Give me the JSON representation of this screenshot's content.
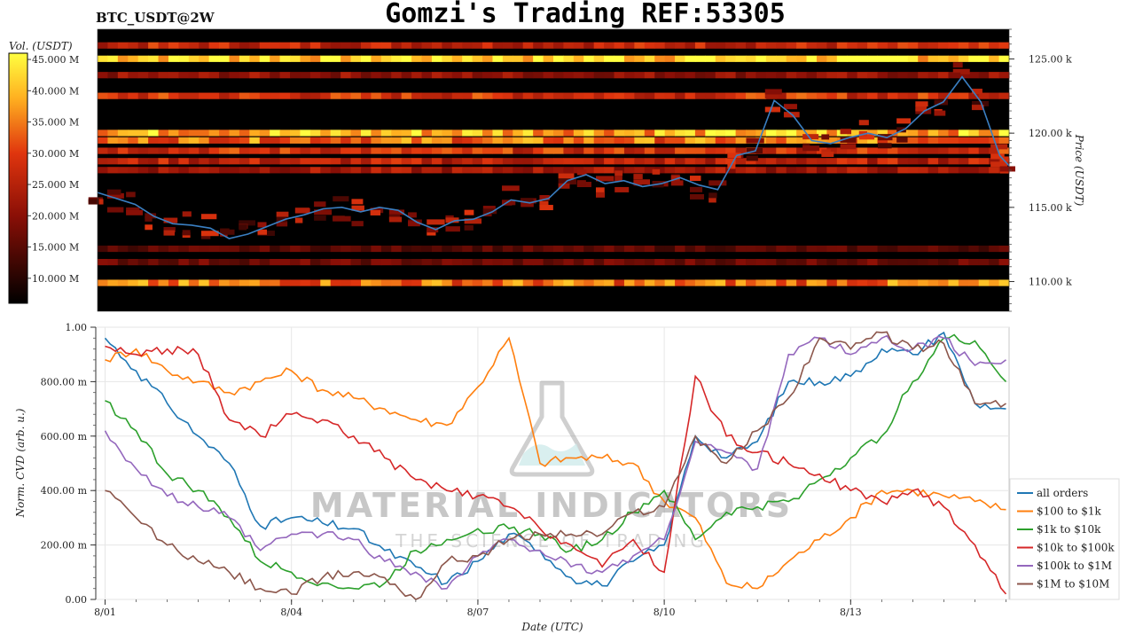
{
  "header": {
    "symbol": "BTC_USDT@2W",
    "title": "Gomzi's Trading REF:53305"
  },
  "watermark": {
    "brand": "MATERIAL INDICATORS",
    "tagline": "THE SCIENCE OF TRADING"
  },
  "colors": {
    "price_line": "#3a7fc2",
    "heatmap_low": "#000000",
    "heatmap_mid": "#b71c0c",
    "heatmap_high": "#ffff30",
    "all_orders": "#1f77b4",
    "usd_100_1k": "#ff7f0e",
    "usd_1k_10k": "#2ca02c",
    "usd_10k_100k": "#d62728",
    "usd_100k_1m": "#9467bd",
    "usd_1m_10m": "#8c564b"
  },
  "chart_data": [
    {
      "type": "heatmap",
      "name_label": "BTC_USDT@2W",
      "colorbar": {
        "label": "Vol. (USDT)",
        "ticks": [
          "10.000 M",
          "15.000 M",
          "20.000 M",
          "25.000 M",
          "30.000 M",
          "35.000 M",
          "40.000 M",
          "45.000 M"
        ],
        "tick_values": [
          10,
          15,
          20,
          25,
          30,
          35,
          40,
          45
        ],
        "range": [
          6,
          46
        ]
      },
      "ylabel": "Price (USDT)",
      "ylim": [
        108000,
        127000
      ],
      "y_ticks": [
        {
          "value": 110000,
          "label": "110.00 k"
        },
        {
          "value": 115000,
          "label": "115.00 k"
        },
        {
          "value": 120000,
          "label": "120.00 k"
        },
        {
          "value": 125000,
          "label": "125.00 k"
        }
      ],
      "x_range_days": [
        0,
        14.55
      ],
      "price_series": {
        "x": [
          0,
          0.3,
          0.6,
          0.9,
          1.2,
          1.5,
          1.8,
          2.1,
          2.4,
          2.7,
          3.0,
          3.3,
          3.6,
          3.9,
          4.2,
          4.5,
          4.8,
          5.1,
          5.4,
          5.7,
          6.0,
          6.3,
          6.6,
          6.9,
          7.2,
          7.5,
          7.8,
          8.1,
          8.4,
          8.7,
          9.0,
          9.3,
          9.6,
          9.9,
          10.2,
          10.5,
          10.8,
          11.1,
          11.4,
          11.7,
          12.0,
          12.3,
          12.6,
          12.9,
          13.2,
          13.5,
          13.8,
          14.1,
          14.4,
          14.55
        ],
        "values": [
          116000,
          115600,
          115200,
          114400,
          113900,
          113800,
          113600,
          112900,
          113200,
          113700,
          114200,
          114500,
          114900,
          115000,
          114700,
          115000,
          114800,
          114000,
          113500,
          114100,
          114200,
          114700,
          115500,
          115300,
          115600,
          116800,
          117200,
          116600,
          116800,
          116400,
          116600,
          117000,
          116500,
          116200,
          118500,
          118800,
          122200,
          121200,
          119500,
          119300,
          119700,
          120000,
          119700,
          120300,
          121500,
          122100,
          123800,
          122100,
          118500,
          117800
        ]
      },
      "volume_bands": [
        {
          "price": 125100,
          "volume": 46
        },
        {
          "price": 126000,
          "volume": 28
        },
        {
          "price": 124000,
          "volume": 22
        },
        {
          "price": 122600,
          "volume": 30
        },
        {
          "price": 120100,
          "volume": 42
        },
        {
          "price": 119600,
          "volume": 36
        },
        {
          "price": 118900,
          "volume": 30
        },
        {
          "price": 118200,
          "volume": 27
        },
        {
          "price": 117600,
          "volume": 24
        },
        {
          "price": 112300,
          "volume": 16
        },
        {
          "price": 111400,
          "volume": 18
        },
        {
          "price": 110000,
          "volume": 36
        }
      ]
    },
    {
      "type": "line",
      "xlabel": "Date (UTC)",
      "ylabel": "Norm. CVD (arb. u.)",
      "ylim": [
        0,
        1
      ],
      "xlim_days": [
        -0.15,
        14.55
      ],
      "y_ticks": [
        {
          "value": 0,
          "label": "0.00"
        },
        {
          "value": 0.2,
          "label": "200.00 m"
        },
        {
          "value": 0.4,
          "label": "400.00 m"
        },
        {
          "value": 0.6,
          "label": "600.00 m"
        },
        {
          "value": 0.8,
          "label": "800.00 m"
        },
        {
          "value": 1.0,
          "label": "1.00"
        }
      ],
      "x_ticks": [
        {
          "value": 0,
          "label": "8/01"
        },
        {
          "value": 3,
          "label": "8/04"
        },
        {
          "value": 6,
          "label": "8/07"
        },
        {
          "value": 9,
          "label": "8/10"
        },
        {
          "value": 12,
          "label": "8/13"
        }
      ],
      "x": [
        0,
        0.5,
        1,
        1.5,
        2,
        2.5,
        3,
        3.5,
        4,
        4.5,
        5,
        5.5,
        6,
        6.5,
        7,
        7.5,
        8,
        8.5,
        9,
        9.5,
        10,
        10.5,
        11,
        11.5,
        12,
        12.5,
        13,
        13.5,
        14,
        14.5
      ],
      "series": [
        {
          "name": "all orders",
          "values": [
            0.96,
            0.84,
            0.72,
            0.6,
            0.5,
            0.27,
            0.3,
            0.28,
            0.26,
            0.18,
            0.12,
            0.06,
            0.14,
            0.24,
            0.18,
            0.08,
            0.05,
            0.14,
            0.2,
            0.6,
            0.52,
            0.58,
            0.8,
            0.8,
            0.82,
            0.92,
            0.9,
            0.98,
            0.72,
            0.7
          ]
        },
        {
          "name": "$100 to $1k",
          "values": [
            0.88,
            0.92,
            0.84,
            0.8,
            0.76,
            0.8,
            0.84,
            0.77,
            0.74,
            0.7,
            0.66,
            0.64,
            0.78,
            0.96,
            0.5,
            0.52,
            0.52,
            0.5,
            0.36,
            0.3,
            0.06,
            0.04,
            0.14,
            0.22,
            0.3,
            0.4,
            0.4,
            0.38,
            0.36,
            0.33
          ]
        },
        {
          "name": "$1k to $10k",
          "values": [
            0.73,
            0.62,
            0.46,
            0.4,
            0.3,
            0.14,
            0.1,
            0.06,
            0.04,
            0.06,
            0.18,
            0.22,
            0.26,
            0.26,
            0.24,
            0.18,
            0.22,
            0.32,
            0.4,
            0.22,
            0.32,
            0.34,
            0.36,
            0.44,
            0.52,
            0.6,
            0.8,
            0.96,
            0.95,
            0.8
          ]
        },
        {
          "name": "$10k to $100k",
          "values": [
            0.93,
            0.9,
            0.92,
            0.9,
            0.66,
            0.6,
            0.68,
            0.66,
            0.6,
            0.52,
            0.44,
            0.4,
            0.38,
            0.34,
            0.26,
            0.2,
            0.12,
            0.22,
            0.1,
            0.82,
            0.6,
            0.54,
            0.5,
            0.46,
            0.4,
            0.36,
            0.4,
            0.34,
            0.2,
            0.02
          ]
        },
        {
          "name": "$100k to $1M",
          "values": [
            0.62,
            0.48,
            0.38,
            0.34,
            0.3,
            0.18,
            0.24,
            0.24,
            0.22,
            0.14,
            0.1,
            0.04,
            0.16,
            0.22,
            0.18,
            0.12,
            0.1,
            0.16,
            0.22,
            0.58,
            0.54,
            0.48,
            0.9,
            0.96,
            0.9,
            0.96,
            0.92,
            0.96,
            0.86,
            0.88
          ]
        },
        {
          "name": "$1M to $10M",
          "values": [
            0.4,
            0.3,
            0.2,
            0.14,
            0.1,
            0.04,
            0.02,
            0.08,
            0.1,
            0.08,
            0.0,
            0.14,
            0.16,
            0.22,
            0.24,
            0.24,
            0.24,
            0.32,
            0.34,
            0.6,
            0.5,
            0.62,
            0.74,
            0.96,
            0.92,
            0.98,
            0.92,
            0.94,
            0.72,
            0.72
          ]
        }
      ],
      "legend": "right"
    }
  ]
}
